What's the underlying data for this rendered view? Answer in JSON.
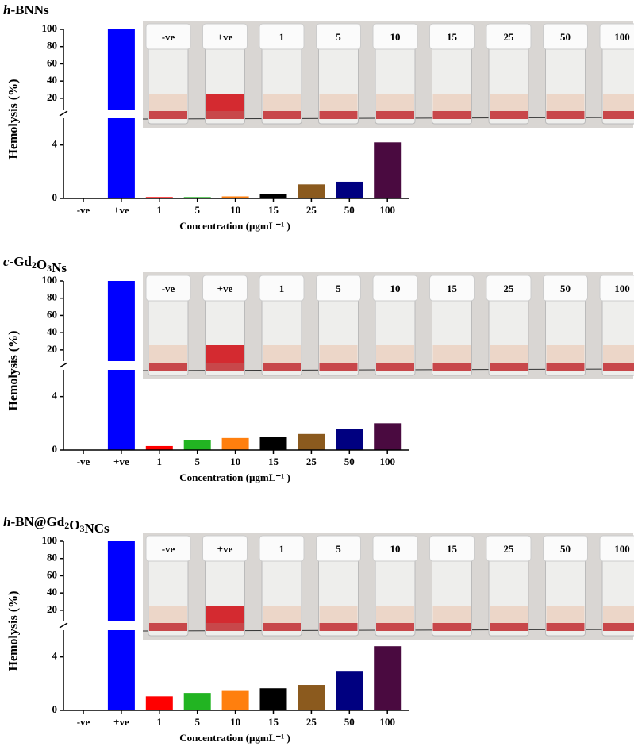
{
  "chart_data": [
    {
      "type": "bar",
      "title": "h-BNNs",
      "ylabel": "Hemolysis (%)",
      "xlabel": "Concentration (µgmL⁻¹ )",
      "categories": [
        "-ve",
        "+ve",
        "1",
        "5",
        "10",
        "15",
        "25",
        "50",
        "100"
      ],
      "values": [
        0,
        100,
        0.1,
        0.1,
        0.15,
        0.3,
        1.05,
        1.25,
        4.2
      ],
      "colors": [
        "#0000ff",
        "#0000ff",
        "#ff0000",
        "#22b422",
        "#ff7f0e",
        "#000000",
        "#8b5a1e",
        "#000080",
        "#4a0a40"
      ],
      "segments": [
        {
          "ylim": [
            0,
            6
          ],
          "yticks": [
            0,
            4
          ]
        },
        {
          "ylim": [
            7,
            100
          ],
          "yticks": [
            20,
            40,
            60,
            80,
            100
          ]
        }
      ]
    },
    {
      "type": "bar",
      "title": "c-Gd2O3Ns",
      "ylabel": "Hemolysis (%)",
      "xlabel": "Concentration (µgmL⁻¹ )",
      "categories": [
        "-ve",
        "+ve",
        "1",
        "5",
        "10",
        "15",
        "25",
        "50",
        "100"
      ],
      "values": [
        0,
        100,
        0.3,
        0.75,
        0.9,
        1.0,
        1.2,
        1.6,
        2.0
      ],
      "colors": [
        "#0000ff",
        "#0000ff",
        "#ff0000",
        "#22b422",
        "#ff7f0e",
        "#000000",
        "#8b5a1e",
        "#000080",
        "#4a0a40"
      ],
      "segments": [
        {
          "ylim": [
            0,
            6
          ],
          "yticks": [
            0,
            4
          ]
        },
        {
          "ylim": [
            7,
            100
          ],
          "yticks": [
            20,
            40,
            60,
            80,
            100
          ]
        }
      ]
    },
    {
      "type": "bar",
      "title": "h-BN@Gd2O3NCs",
      "ylabel": "Hemolysis (%)",
      "xlabel": "Concentration (µgmL⁻¹ )",
      "categories": [
        "-ve",
        "+ve",
        "1",
        "5",
        "10",
        "15",
        "25",
        "50",
        "100"
      ],
      "values": [
        0,
        100,
        1.05,
        1.3,
        1.45,
        1.65,
        1.9,
        2.9,
        4.8
      ],
      "colors": [
        "#0000ff",
        "#0000ff",
        "#ff0000",
        "#22b422",
        "#ff7f0e",
        "#000000",
        "#8b5a1e",
        "#000080",
        "#4a0a40"
      ],
      "segments": [
        {
          "ylim": [
            0,
            6
          ],
          "yticks": [
            0,
            4
          ]
        },
        {
          "ylim": [
            7,
            100
          ],
          "yticks": [
            20,
            40,
            60,
            80,
            100
          ]
        }
      ]
    }
  ]
}
